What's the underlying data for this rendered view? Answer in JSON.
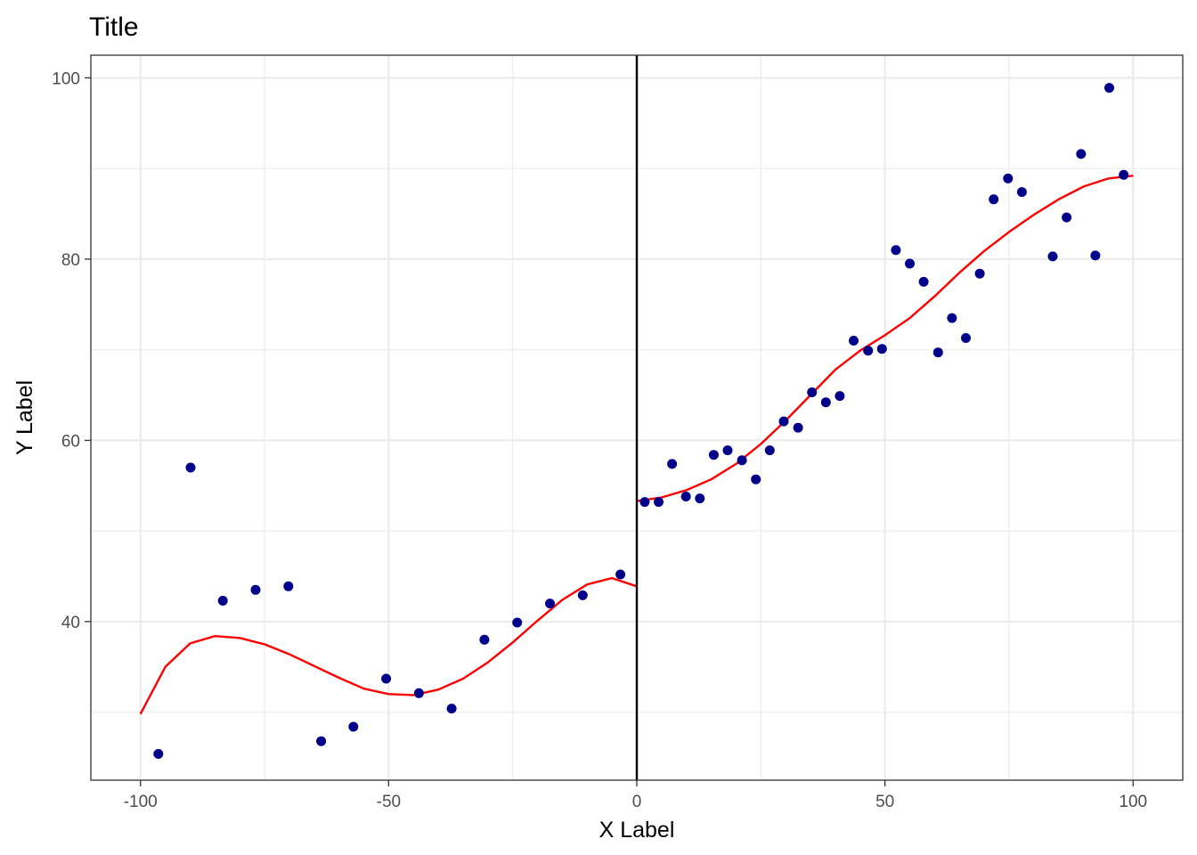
{
  "chart_data": {
    "type": "scatter",
    "title": "Title",
    "xlabel": "X Label",
    "ylabel": "Y Label",
    "xlim": [
      -110,
      110
    ],
    "ylim": [
      22.5,
      102.5
    ],
    "x_ticks": [
      -100,
      -50,
      0,
      50,
      100
    ],
    "x_tick_labels": [
      "-100",
      "-50",
      "0",
      "50",
      "100"
    ],
    "y_ticks": [
      40,
      60,
      80,
      100
    ],
    "y_tick_labels": [
      "40",
      "60",
      "80",
      "100"
    ],
    "grid": true,
    "legend": "none",
    "cutoff_line": {
      "x": 0,
      "color": "#000000"
    },
    "points_color": "#00008b",
    "fit_color": "#ff0000",
    "series": [
      {
        "kind": "points",
        "x": [
          -96.4,
          -89.9,
          -83.4,
          -76.8,
          -70.2,
          -63.6,
          -57.1,
          -50.5,
          -43.9,
          -37.3,
          -30.7,
          -24.1,
          -17.5,
          -10.9,
          -3.3,
          1.6,
          4.4,
          7.1,
          9.9,
          12.7,
          15.5,
          18.3,
          21.2,
          24.0,
          26.8,
          29.6,
          32.5,
          35.3,
          38.1,
          40.9,
          43.7,
          46.6,
          49.4,
          52.2,
          55.0,
          57.8,
          60.7,
          63.5,
          66.3,
          69.1,
          71.9,
          74.8,
          77.6,
          83.8,
          86.6,
          89.5,
          92.4,
          95.2,
          98.1
        ],
        "y": [
          25.4,
          57.0,
          42.3,
          43.5,
          43.9,
          26.8,
          28.4,
          33.7,
          32.1,
          30.4,
          38.0,
          39.9,
          42.0,
          42.9,
          45.2,
          53.2,
          53.2,
          57.4,
          53.8,
          53.6,
          58.4,
          58.9,
          57.8,
          55.7,
          58.9,
          62.1,
          61.4,
          65.3,
          64.2,
          64.9,
          71.0,
          69.9,
          70.1,
          81.0,
          79.5,
          77.5,
          69.7,
          73.5,
          71.3,
          78.4,
          86.6,
          88.9,
          87.4,
          80.3,
          84.6,
          91.6,
          80.4,
          98.9,
          89.3
        ]
      },
      {
        "kind": "fit_left",
        "x": [
          -100,
          -95,
          -90,
          -85,
          -80,
          -75,
          -70,
          -65,
          -60,
          -55,
          -50,
          -45,
          -40,
          -35,
          -30,
          -25,
          -20,
          -15,
          -10,
          -5,
          0
        ],
        "y": [
          29.8,
          35.0,
          37.6,
          38.4,
          38.2,
          37.5,
          36.4,
          35.1,
          33.8,
          32.6,
          32.0,
          31.9,
          32.5,
          33.7,
          35.5,
          37.7,
          40.1,
          42.4,
          44.1,
          44.8,
          43.9
        ]
      },
      {
        "kind": "fit_right",
        "x": [
          0,
          5,
          10,
          15,
          20,
          25,
          30,
          35,
          40,
          45,
          50,
          55,
          60,
          65,
          70,
          75,
          80,
          85,
          90,
          95,
          100
        ],
        "y": [
          53.3,
          53.7,
          54.5,
          55.7,
          57.4,
          59.6,
          62.2,
          65.0,
          67.8,
          69.9,
          71.6,
          73.5,
          75.9,
          78.5,
          80.9,
          83.0,
          84.9,
          86.6,
          88.0,
          88.9,
          89.2
        ]
      }
    ]
  }
}
